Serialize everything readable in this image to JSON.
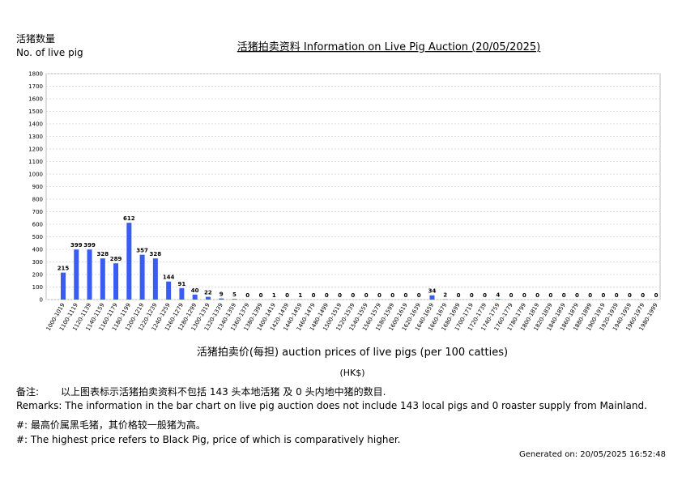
{
  "chart_data": {
    "type": "bar",
    "title": "活猪拍卖资料 Information on Live Pig Auction (20/05/2025)",
    "y_label": [
      "活猪数量",
      "No. of live pig"
    ],
    "x_label": "活猪拍卖价(每担) auction prices of live pigs (per 100 catties)",
    "x_unit": "(HK$)",
    "categories": [
      "1000-1019",
      "1100-1119",
      "1120-1139",
      "1140-1159",
      "1160-1179",
      "1180-1199",
      "1200-1219",
      "1220-1239",
      "1240-1259",
      "1260-1279",
      "1280-1299",
      "1300-1319",
      "1320-1339",
      "1340-1359",
      "1360-1379",
      "1380-1399",
      "1400-1419",
      "1420-1439",
      "1440-1459",
      "1460-1479",
      "1480-1499",
      "1500-1519",
      "1520-1539",
      "1540-1559",
      "1560-1579",
      "1580-1599",
      "1600-1619",
      "1620-1639",
      "1640-1659",
      "1660-1679",
      "1680-1699",
      "1700-1719",
      "1720-1739",
      "1740-1759",
      "1760-1779",
      "1780-1799",
      "1800-1819",
      "1820-1839",
      "1840-1859",
      "1860-1879",
      "1880-1899",
      "1900-1919",
      "1920-1939",
      "1940-1959",
      "1960-1979",
      "1980-1999"
    ],
    "values": [
      215,
      399,
      399,
      328,
      289,
      612,
      357,
      328,
      144,
      91,
      40,
      22,
      9,
      5,
      0,
      0,
      1,
      0,
      1,
      0,
      0,
      0,
      0,
      0,
      0,
      0,
      0,
      0,
      34,
      2,
      0,
      0,
      0,
      4,
      0,
      0,
      0,
      0,
      0,
      0,
      0,
      0,
      0,
      0,
      0,
      0
    ],
    "color": "#3a5cf0",
    "ylim": [
      0,
      1800
    ],
    "yticks": [
      0,
      100,
      200,
      300,
      400,
      500,
      600,
      700,
      800,
      900,
      1000,
      1100,
      1200,
      1300,
      1400,
      1500,
      1600,
      1700,
      1800
    ],
    "grid": true
  },
  "remarks": {
    "label": "备注:",
    "chinese": "以上图表标示活猪拍卖资料不包括 143 头本地活猪 及 0 头内地中猪的数目.",
    "english": "Remarks: The information in the bar chart on live pig auction does not include 143 local pigs and 0 roaster supply from Mainland."
  },
  "footnotes": [
    "#: 最高价属黑毛猪，其价格较一般猪为高。",
    "#: The highest price refers to Black Pig, price of which is comparatively higher."
  ],
  "generated": "Generated on: 20/05/2025 16:52:48"
}
